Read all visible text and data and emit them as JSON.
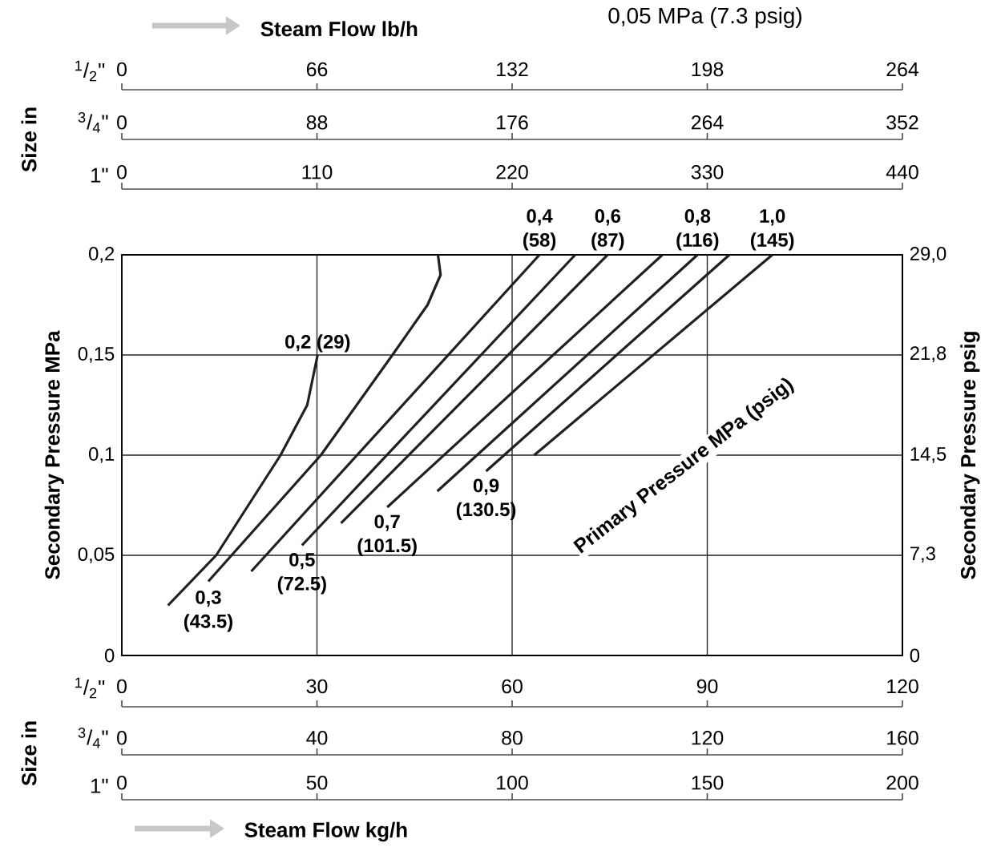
{
  "chart_data": {
    "type": "line",
    "xlim": [
      0,
      120
    ],
    "xticks": [
      0,
      30,
      60,
      90,
      120
    ],
    "xlabel": "$^{1}$/$_{2}$\"",
    "x2lim": [
      0,
      264
    ],
    "x2ticks": [
      0,
      66,
      132,
      198,
      264
    ],
    "x2label": "$^{1}$/$_{2}$\"",
    "ylim": [
      0,
      0.2
    ],
    "yticks": [
      0,
      {
        "value": 0.05,
        "label": "0,05"
      },
      {
        "value": 0.1,
        "label": "0,1"
      },
      {
        "value": 0.15,
        "label": "0,15"
      },
      {
        "value": 0.2,
        "label": "0,2"
      }
    ],
    "ylabel": "Secondary Pressure MPa",
    "y2lim": [
      0,
      29
    ],
    "y2ticks": [
      0,
      {
        "value": 7.3,
        "label": "7,3"
      },
      {
        "value": 14.5,
        "label": "14,5"
      },
      {
        "value": 21.8,
        "label": "21,8"
      },
      {
        "value": 29,
        "label": "29,0"
      }
    ],
    "y2label": "Secondary Pressure psig",
    "grid": true,
    "marker": "none",
    "line_style": "solid",
    "series": [
      {
        "name": "0,2 (29)",
        "color": "#231f20",
        "x": [
          7.1,
          14.5,
          24.4,
          28.5,
          30.1
        ],
        "values": [
          0.025,
          0.05,
          0.1,
          0.125,
          0.15
        ]
      },
      {
        "name": "0,3 (43.5)",
        "color": "#231f20",
        "x": [
          13.3,
          30.6,
          41.6,
          47,
          49,
          48.6
        ],
        "values": [
          0.037,
          0.1,
          0.15,
          0.175,
          0.19,
          0.2
        ]
      },
      {
        "name": "0,4 (58)",
        "color": "#231f20",
        "x": [
          19.9,
          64.2
        ],
        "values": [
          0.042,
          0.2
        ]
      },
      {
        "name": "0,5 (72.5)",
        "color": "#231f20",
        "x": [
          27.7,
          69.7
        ],
        "values": [
          0.055,
          0.2
        ]
      },
      {
        "name": "0,6 (87)",
        "color": "#231f20",
        "x": [
          33.7,
          74.7
        ],
        "values": [
          0.066,
          0.2
        ]
      },
      {
        "name": "0,7 (101.5)",
        "color": "#231f20",
        "x": [
          40.8,
          83.1
        ],
        "values": [
          0.074,
          0.2
        ]
      },
      {
        "name": "0,8 (116)",
        "color": "#231f20",
        "x": [
          48.5,
          88.5
        ],
        "values": [
          0.082,
          0.2
        ]
      },
      {
        "name": "0,9 (130.5)",
        "color": "#231f20",
        "x": [
          56,
          93.4
        ],
        "values": [
          0.092,
          0.2
        ]
      },
      {
        "name": "1,0 (145)",
        "color": "#231f20",
        "x": [
          63.4,
          100
        ],
        "values": [
          0.1,
          0.2
        ]
      }
    ],
    "annotations": [
      "0,05 MPa (7.3 psig)",
      "Steam Flow lb/h",
      "Size in",
      "Size in",
      "Steam Flow kg/h",
      "Primary Pressure MPa (psig)",
      "$^{3}$/$_{4}$\"",
      "1\"",
      "$^{3}$/$_{4}$\"",
      "1\"",
      "0",
      "88",
      "176",
      "264",
      "352",
      "0",
      "110",
      "220",
      "330",
      "440",
      "0",
      "40",
      "80",
      "120",
      "160",
      "0",
      "50",
      "100",
      "150",
      "200"
    ]
  }
}
